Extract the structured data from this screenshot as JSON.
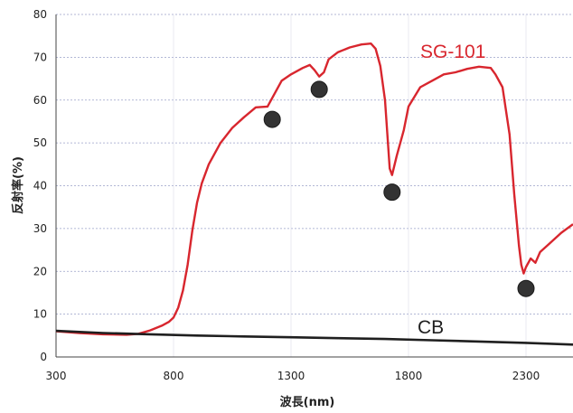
{
  "chart_data": {
    "type": "line",
    "title": "",
    "xlabel": "波長(nm)",
    "ylabel": "反射率(%)",
    "xlim": [
      300,
      2500
    ],
    "ylim": [
      0,
      80
    ],
    "xticks": [
      300,
      800,
      1300,
      1800,
      2300
    ],
    "yticks": [
      0,
      10,
      20,
      30,
      40,
      50,
      60,
      70,
      80
    ],
    "grid": "horizontal-dashed",
    "series": [
      {
        "name": "SG-101",
        "color": "#d8262e",
        "x": [
          300,
          400,
          500,
          600,
          650,
          700,
          750,
          780,
          800,
          820,
          840,
          860,
          880,
          900,
          920,
          950,
          1000,
          1050,
          1100,
          1150,
          1200,
          1220,
          1240,
          1260,
          1300,
          1350,
          1380,
          1400,
          1420,
          1440,
          1460,
          1500,
          1550,
          1600,
          1640,
          1660,
          1680,
          1700,
          1710,
          1720,
          1730,
          1750,
          1780,
          1800,
          1850,
          1900,
          1950,
          2000,
          2050,
          2100,
          2150,
          2170,
          2200,
          2230,
          2250,
          2270,
          2280,
          2290,
          2300,
          2320,
          2340,
          2360,
          2400,
          2450,
          2500
        ],
        "y": [
          6.0,
          5.6,
          5.3,
          5.2,
          5.4,
          6.2,
          7.3,
          8.2,
          9.2,
          11.5,
          15.5,
          21.5,
          29.5,
          36.0,
          40.5,
          45.0,
          50.0,
          53.5,
          56.0,
          58.3,
          58.5,
          60.5,
          62.5,
          64.5,
          66.0,
          67.5,
          68.2,
          67.0,
          65.5,
          66.5,
          69.5,
          71.2,
          72.3,
          73.0,
          73.2,
          72.0,
          68.0,
          60.0,
          52.0,
          44.0,
          42.5,
          47.0,
          53.0,
          58.5,
          63.0,
          64.5,
          66.0,
          66.5,
          67.3,
          67.8,
          67.5,
          66.0,
          63.0,
          52.0,
          38.0,
          26.0,
          21.5,
          19.5,
          21.0,
          23.0,
          22.0,
          24.5,
          26.5,
          29.0,
          31.0
        ]
      },
      {
        "name": "CB",
        "color": "#1f1f1f",
        "x": [
          300,
          500,
          700,
          900,
          1100,
          1300,
          1500,
          1700,
          1900,
          2100,
          2300,
          2500
        ],
        "y": [
          6.1,
          5.6,
          5.3,
          5.0,
          4.8,
          4.6,
          4.4,
          4.2,
          3.9,
          3.6,
          3.3,
          2.9
        ]
      }
    ],
    "markers": [
      {
        "x": 1220,
        "y": 55.5
      },
      {
        "x": 1420,
        "y": 62.5
      },
      {
        "x": 1730,
        "y": 38.5
      },
      {
        "x": 2300,
        "y": 16.0
      }
    ]
  }
}
